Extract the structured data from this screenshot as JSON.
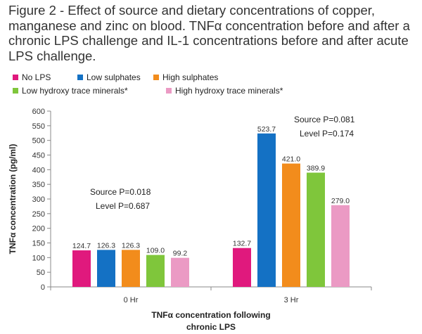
{
  "figure_title": "Figure 2 - Effect of source and dietary concentrations of copper, manganese and zinc on blood. TNFα concentration before and after a chronic LPS challenge and IL-1 concentrations before and after acute LPS challenge.",
  "chart_data": {
    "type": "bar",
    "title": "Figure 2 - Effect of source and dietary concentrations of copper, manganese and zinc on blood. TNFα concentration before and after a chronic LPS challenge and IL-1 concentrations before and after acute LPS challenge.",
    "xlabel": [
      "TNFα concentration following",
      "chronic LPS"
    ],
    "ylabel": "TNFα concentration (pg/ml)",
    "categories": [
      "0 Hr",
      "3 Hr"
    ],
    "ylim": [
      0,
      600
    ],
    "yticks": [
      0,
      50,
      100,
      150,
      200,
      250,
      300,
      350,
      400,
      450,
      500,
      550,
      600
    ],
    "grid": false,
    "legend_position": "top",
    "series": [
      {
        "name": "No LPS",
        "color": "#e0197d",
        "values": [
          124.7,
          132.7
        ],
        "labels": [
          "124.7",
          "132.7"
        ]
      },
      {
        "name": "Low sulphates",
        "color": "#1471c4",
        "values": [
          126.3,
          523.7
        ],
        "labels": [
          "126.3",
          "523.7"
        ]
      },
      {
        "name": "High sulphates",
        "color": "#f28c1c",
        "values": [
          126.3,
          421.0
        ],
        "labels": [
          "126.3",
          "421.0"
        ]
      },
      {
        "name": "Low hydroxy trace minerals*",
        "color": "#7fc63b",
        "values": [
          109.0,
          389.9
        ],
        "labels": [
          "109.0",
          "389.9"
        ]
      },
      {
        "name": "High hydroxy trace minerals*",
        "color": "#eb9ac4",
        "values": [
          99.2,
          279.0
        ],
        "labels": [
          "99.2",
          "279.0"
        ]
      }
    ],
    "annotations": [
      {
        "category": "0 Hr",
        "lines": [
          "Source P=0.018",
          "Level P=0.687"
        ]
      },
      {
        "category": "3 Hr",
        "lines": [
          "Source P=0.081",
          "Level P=0.174"
        ]
      }
    ]
  }
}
